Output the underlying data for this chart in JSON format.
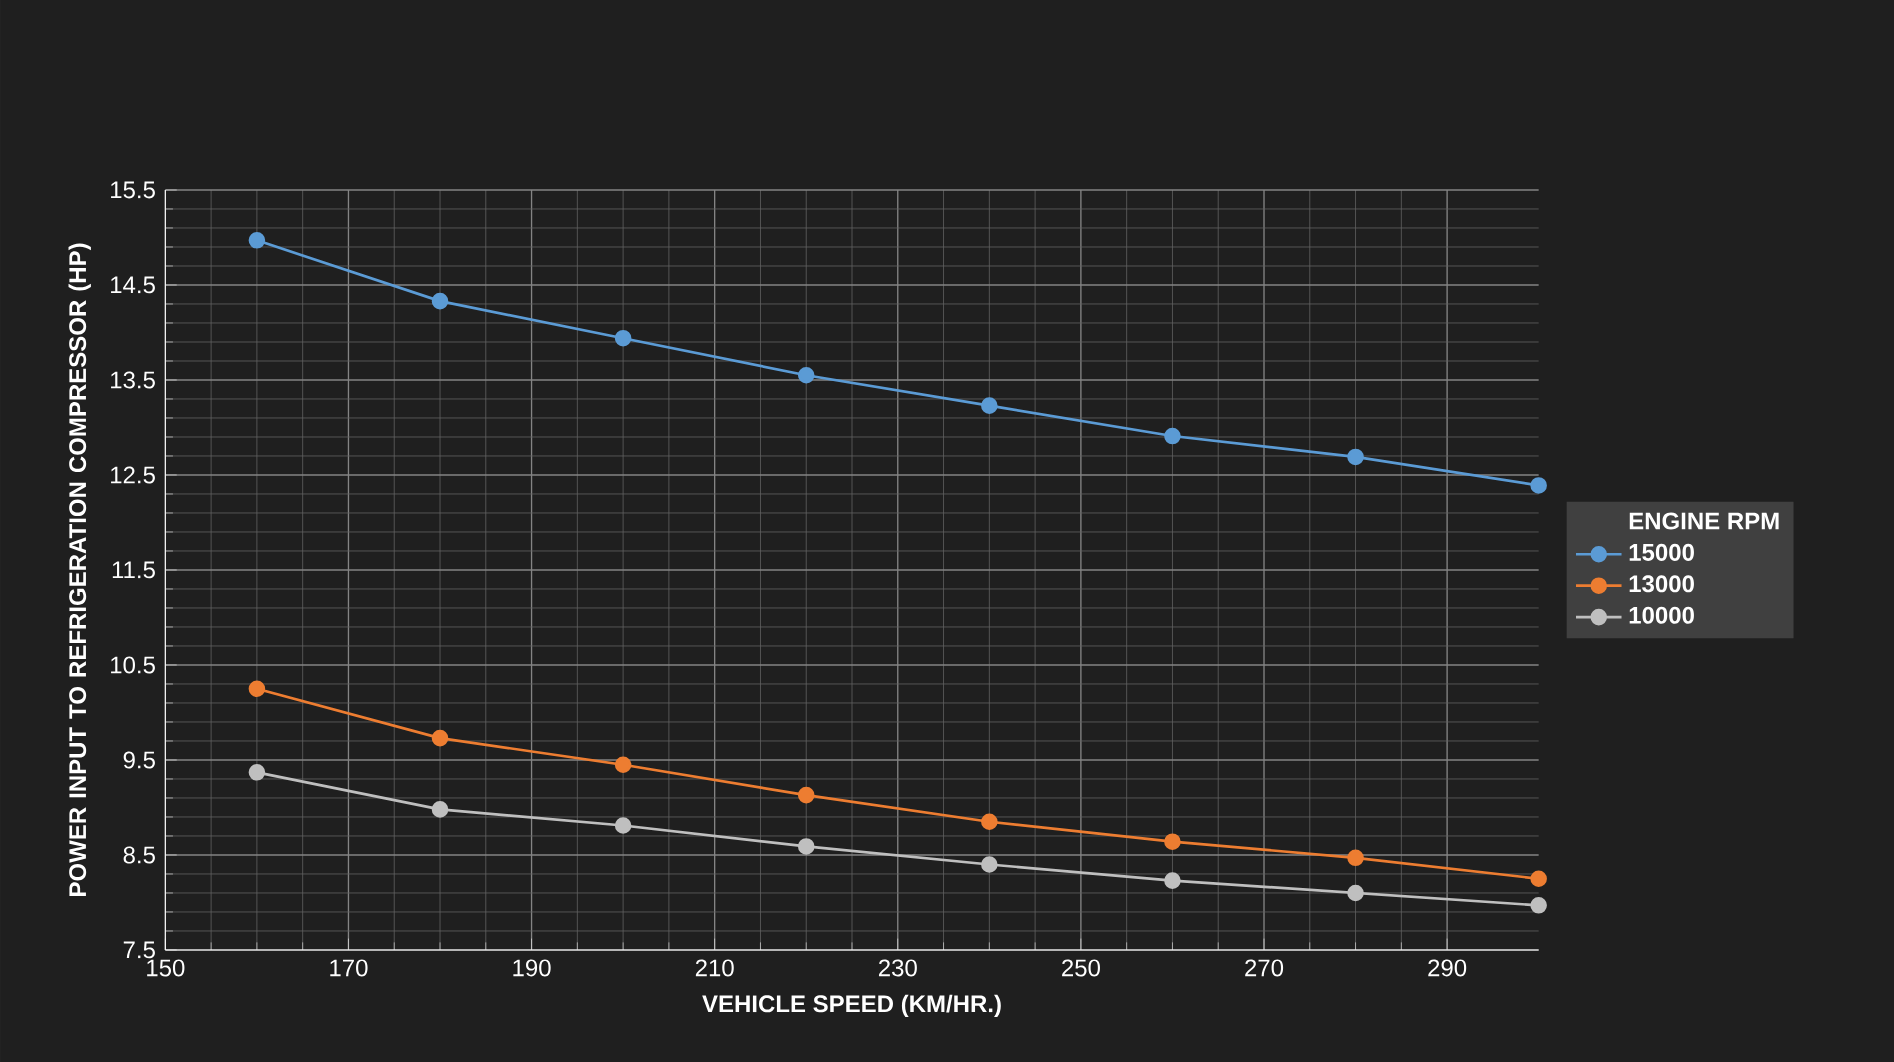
{
  "chart_data": {
    "type": "line",
    "xlabel": "VEHICLE SPEED (KM/HR.)",
    "ylabel": "POWER INPUT TO REFRIGERATION COMPRESSOR (HP)",
    "legend_title": "ENGINE RPM",
    "x": [
      160,
      180,
      200,
      220,
      240,
      260,
      280,
      300
    ],
    "series": [
      {
        "name": "15000",
        "color": "#5b9bd5",
        "values": [
          14.97,
          14.33,
          13.94,
          13.55,
          13.23,
          12.91,
          12.69,
          12.39
        ]
      },
      {
        "name": "13000",
        "color": "#ed7d31",
        "values": [
          10.25,
          9.73,
          9.45,
          9.13,
          8.85,
          8.64,
          8.47,
          8.25
        ]
      },
      {
        "name": "10000",
        "color": "#bfbfbf",
        "values": [
          9.37,
          8.98,
          8.81,
          8.59,
          8.4,
          8.23,
          8.1,
          7.97
        ]
      }
    ],
    "xlim": [
      150,
      300
    ],
    "ylim": [
      7.5,
      15.5
    ],
    "xticks": [
      150,
      170,
      190,
      210,
      230,
      250,
      270,
      290
    ],
    "yticks": [
      7.5,
      8.5,
      9.5,
      10.5,
      11.5,
      12.5,
      13.5,
      14.5,
      15.5
    ],
    "grid": true,
    "legend": "right",
    "marker": "circle",
    "line_style": "solid"
  }
}
